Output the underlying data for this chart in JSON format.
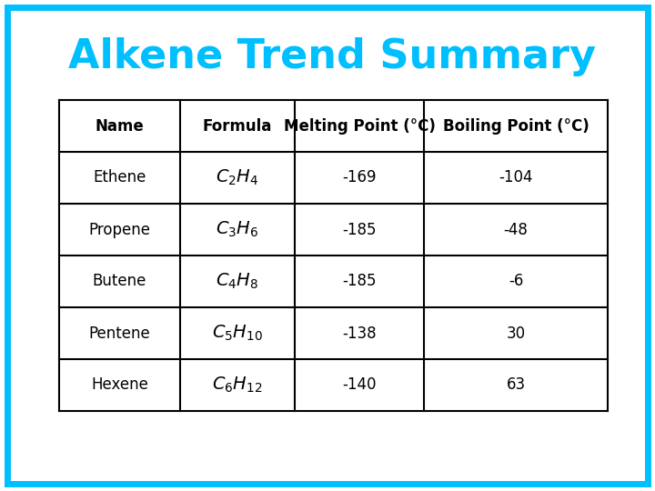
{
  "title": "Alkene Trend Summary",
  "title_color": "#00BFFF",
  "title_fontsize": 32,
  "background_color": "#FFFFFF",
  "border_color": "#00BFFF",
  "border_linewidth": 5,
  "table_border_color": "#000000",
  "table_linewidth": 1.5,
  "headers": [
    "Name",
    "Formula",
    "Melting Point (°C)",
    "Boiling Point (°C)"
  ],
  "rows": [
    [
      "Ethene",
      "-169",
      "-104"
    ],
    [
      "Propene",
      "-185",
      "-48"
    ],
    [
      "Butene",
      "-185",
      "-6"
    ],
    [
      "Pentene",
      "-138",
      "30"
    ],
    [
      "Hexene",
      "-140",
      "63"
    ]
  ],
  "formulas": [
    {
      "sub_c": "2",
      "sub_h": "4"
    },
    {
      "sub_c": "3",
      "sub_h": "6"
    },
    {
      "sub_c": "4",
      "sub_h": "8"
    },
    {
      "sub_c": "5",
      "sub_h": "10"
    },
    {
      "sub_c": "6",
      "sub_h": "12"
    }
  ],
  "cell_fontsize": 12,
  "header_fontsize": 12
}
